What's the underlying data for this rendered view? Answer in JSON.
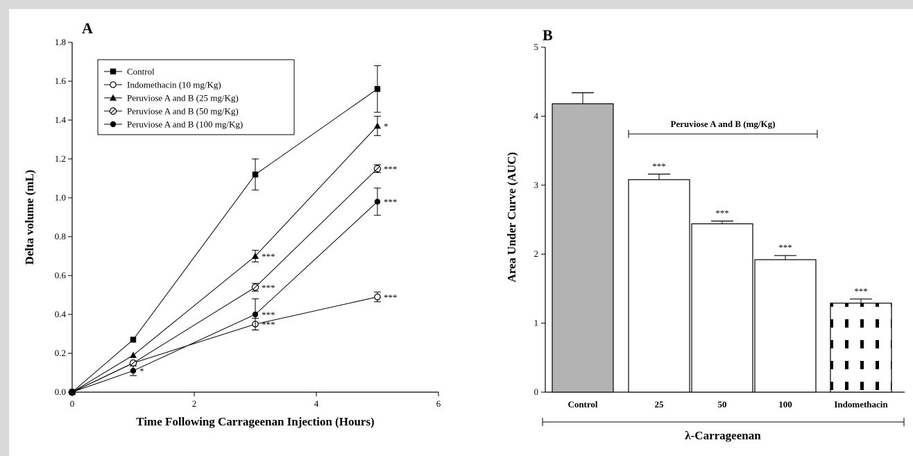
{
  "chart_data": [
    {
      "type": "line",
      "panel_label": "A",
      "xlabel": "Time Following Carrageenan Injection (Hours)",
      "ylabel": "Delta volume (mL)",
      "xlim": [
        0,
        6
      ],
      "ylim": [
        0,
        1.8
      ],
      "xticks": [
        "0",
        "2",
        "4",
        "6"
      ],
      "yticks": [
        "0.0",
        "0.2",
        "0.4",
        "0.6",
        "0.8",
        "1.0",
        "1.2",
        "1.4",
        "1.6",
        "1.8"
      ],
      "legend_position": "top-left",
      "x": [
        0,
        1,
        3,
        5
      ],
      "series": [
        {
          "name": "Control",
          "marker": "square-filled",
          "values": [
            0,
            0.27,
            1.12,
            1.56
          ],
          "errors": [
            0,
            0,
            0.08,
            0.12
          ],
          "annotations": [
            "",
            "",
            "",
            ""
          ]
        },
        {
          "name": "Indomethacin (10 mg/Kg)",
          "marker": "circle-open",
          "values": [
            0,
            0.15,
            0.35,
            0.49
          ],
          "errors": [
            0,
            0,
            0.03,
            0.025
          ],
          "annotations": [
            "",
            "",
            "***",
            "***"
          ]
        },
        {
          "name": "Peruviose A and B (25 mg/Kg)",
          "marker": "triangle-filled",
          "values": [
            0,
            0.19,
            0.7,
            1.37
          ],
          "errors": [
            0,
            0,
            0.03,
            0.05
          ],
          "annotations": [
            "",
            "",
            "***",
            "*"
          ]
        },
        {
          "name": "Peruviose A and B (50 mg/Kg)",
          "marker": "diamond-open",
          "values": [
            0,
            0.15,
            0.54,
            1.15
          ],
          "errors": [
            0,
            0,
            0.02,
            0.02
          ],
          "annotations": [
            "",
            "",
            "***",
            "***"
          ]
        },
        {
          "name": "Peruviose A and B (100 mg/Kg)",
          "marker": "circle-filled",
          "values": [
            0,
            0.11,
            0.4,
            0.98
          ],
          "errors": [
            0,
            0.025,
            0.08,
            0.07
          ],
          "annotations": [
            "",
            "*",
            "***",
            "***"
          ]
        }
      ]
    },
    {
      "type": "bar",
      "panel_label": "B",
      "ylabel": "Area Under Curve (AUC)",
      "ylim": [
        0,
        5
      ],
      "yticks": [
        "0",
        "1",
        "2",
        "3",
        "4",
        "5"
      ],
      "categories": [
        "Control",
        "25",
        "50",
        "100",
        "Indomethacin"
      ],
      "values": [
        4.18,
        3.08,
        2.44,
        1.92,
        1.29
      ],
      "errors": [
        0.16,
        0.08,
        0.04,
        0.06,
        0.06
      ],
      "annotations": [
        "",
        "***",
        "***",
        "***",
        "***"
      ],
      "fills": [
        "#b3b3b3",
        "#ffffff",
        "#ffffff",
        "#ffffff",
        "pattern"
      ],
      "group_label": "Peruviose A and B (mg/Kg)",
      "xlabel": "λ-Carrageenan"
    }
  ]
}
